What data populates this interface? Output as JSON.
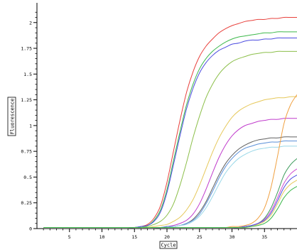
{
  "chart_data": {
    "type": "line",
    "title": "",
    "xlabel": "Cycle",
    "ylabel": "Fluorescence",
    "xlim": [
      0,
      40
    ],
    "ylim": [
      0,
      2.15
    ],
    "x_ticks": [
      5,
      10,
      15,
      20,
      25,
      30,
      35
    ],
    "x_tick_labels": [
      "5",
      "10",
      "15",
      "20",
      "25",
      "30",
      "35"
    ],
    "y_ticks": [
      0,
      0.25,
      0.5,
      0.75,
      1,
      1.25,
      1.5,
      1.75,
      2
    ],
    "y_tick_labels": [
      "0",
      "0.25",
      "0.5",
      "0.75",
      "1",
      "1.25",
      "1.5",
      "1.75",
      "2"
    ],
    "grid": false,
    "legend": "none",
    "x": [
      1,
      2,
      3,
      4,
      5,
      6,
      7,
      8,
      9,
      10,
      11,
      12,
      13,
      14,
      15,
      16,
      17,
      18,
      19,
      20,
      21,
      22,
      23,
      24,
      25,
      26,
      27,
      28,
      29,
      30,
      31,
      32,
      33,
      34,
      35,
      36,
      37,
      38,
      39,
      40
    ],
    "series": [
      {
        "color": "#e8413c",
        "values": [
          0.01,
          0.01,
          0.01,
          0.01,
          0.01,
          0.01,
          0.01,
          0.01,
          0.01,
          0.01,
          0.01,
          0.01,
          0.01,
          0.01,
          0.01,
          0.02,
          0.04,
          0.1,
          0.22,
          0.45,
          0.75,
          1.05,
          1.32,
          1.52,
          1.67,
          1.77,
          1.84,
          1.9,
          1.94,
          1.97,
          1.99,
          2.01,
          2.02,
          2.03,
          2.03,
          2.04,
          2.04,
          2.05,
          2.05,
          2.05
        ]
      },
      {
        "color": "#3cb84a",
        "values": [
          0.01,
          0.01,
          0.01,
          0.01,
          0.01,
          0.01,
          0.01,
          0.01,
          0.01,
          0.01,
          0.01,
          0.01,
          0.01,
          0.01,
          0.01,
          0.02,
          0.03,
          0.08,
          0.18,
          0.38,
          0.66,
          0.94,
          1.2,
          1.4,
          1.55,
          1.65,
          1.72,
          1.77,
          1.81,
          1.84,
          1.86,
          1.87,
          1.88,
          1.89,
          1.9,
          1.9,
          1.91,
          1.91,
          1.91,
          1.91
        ]
      },
      {
        "color": "#4c4ce0",
        "values": [
          0.01,
          0.01,
          0.01,
          0.01,
          0.01,
          0.01,
          0.01,
          0.01,
          0.01,
          0.01,
          0.01,
          0.01,
          0.01,
          0.01,
          0.01,
          0.02,
          0.03,
          0.07,
          0.16,
          0.35,
          0.62,
          0.9,
          1.16,
          1.36,
          1.51,
          1.61,
          1.68,
          1.73,
          1.76,
          1.79,
          1.8,
          1.82,
          1.83,
          1.83,
          1.84,
          1.84,
          1.85,
          1.85,
          1.85,
          1.85
        ]
      },
      {
        "color": "#8cbf4a",
        "values": [
          0.01,
          0.01,
          0.01,
          0.01,
          0.01,
          0.01,
          0.01,
          0.01,
          0.01,
          0.01,
          0.01,
          0.01,
          0.01,
          0.01,
          0.01,
          0.01,
          0.02,
          0.04,
          0.07,
          0.13,
          0.24,
          0.42,
          0.64,
          0.88,
          1.09,
          1.27,
          1.4,
          1.5,
          1.57,
          1.62,
          1.65,
          1.67,
          1.69,
          1.7,
          1.71,
          1.71,
          1.72,
          1.72,
          1.72,
          1.72
        ]
      },
      {
        "color": "#e6c85a",
        "values": [
          0.01,
          0.01,
          0.01,
          0.01,
          0.01,
          0.01,
          0.01,
          0.01,
          0.01,
          0.01,
          0.01,
          0.01,
          0.01,
          0.01,
          0.01,
          0.01,
          0.01,
          0.02,
          0.03,
          0.04,
          0.07,
          0.11,
          0.18,
          0.28,
          0.42,
          0.58,
          0.74,
          0.88,
          0.99,
          1.08,
          1.14,
          1.18,
          1.21,
          1.23,
          1.25,
          1.26,
          1.27,
          1.27,
          1.28,
          1.28
        ]
      },
      {
        "color": "#c03ccc",
        "values": [
          0.01,
          0.01,
          0.01,
          0.01,
          0.01,
          0.01,
          0.01,
          0.01,
          0.01,
          0.01,
          0.01,
          0.01,
          0.01,
          0.01,
          0.01,
          0.01,
          0.01,
          0.01,
          0.01,
          0.02,
          0.03,
          0.05,
          0.08,
          0.14,
          0.24,
          0.38,
          0.54,
          0.69,
          0.81,
          0.9,
          0.96,
          1.0,
          1.02,
          1.04,
          1.05,
          1.06,
          1.06,
          1.07,
          1.07,
          1.07
        ]
      },
      {
        "color": "#606060",
        "values": [
          0.01,
          0.01,
          0.01,
          0.01,
          0.01,
          0.01,
          0.01,
          0.01,
          0.01,
          0.01,
          0.01,
          0.01,
          0.01,
          0.01,
          0.01,
          0.01,
          0.01,
          0.01,
          0.01,
          0.02,
          0.02,
          0.03,
          0.05,
          0.09,
          0.16,
          0.26,
          0.39,
          0.52,
          0.63,
          0.71,
          0.77,
          0.81,
          0.84,
          0.86,
          0.87,
          0.88,
          0.88,
          0.89,
          0.89,
          0.89
        ]
      },
      {
        "color": "#5a8fd8",
        "values": [
          0.01,
          0.01,
          0.01,
          0.01,
          0.01,
          0.01,
          0.01,
          0.01,
          0.01,
          0.01,
          0.01,
          0.01,
          0.01,
          0.01,
          0.01,
          0.01,
          0.01,
          0.01,
          0.01,
          0.02,
          0.02,
          0.03,
          0.05,
          0.08,
          0.14,
          0.24,
          0.36,
          0.49,
          0.6,
          0.68,
          0.74,
          0.78,
          0.8,
          0.82,
          0.83,
          0.84,
          0.84,
          0.85,
          0.85,
          0.85
        ]
      },
      {
        "color": "#9ad8e8",
        "values": [
          0.01,
          0.01,
          0.01,
          0.01,
          0.01,
          0.01,
          0.01,
          0.01,
          0.01,
          0.01,
          0.01,
          0.01,
          0.01,
          0.01,
          0.01,
          0.01,
          0.01,
          0.01,
          0.01,
          0.01,
          0.02,
          0.03,
          0.04,
          0.07,
          0.12,
          0.2,
          0.31,
          0.43,
          0.54,
          0.62,
          0.68,
          0.72,
          0.75,
          0.77,
          0.78,
          0.79,
          0.79,
          0.8,
          0.8,
          0.8
        ]
      },
      {
        "color": "#f0a040",
        "values": [
          0.01,
          0.01,
          0.01,
          0.01,
          0.01,
          0.01,
          0.01,
          0.01,
          0.01,
          0.01,
          0.01,
          0.01,
          0.01,
          0.01,
          0.01,
          0.01,
          0.01,
          0.01,
          0.01,
          0.01,
          0.01,
          0.01,
          0.01,
          0.01,
          0.01,
          0.01,
          0.01,
          0.01,
          0.01,
          0.02,
          0.02,
          0.03,
          0.05,
          0.1,
          0.2,
          0.4,
          0.7,
          1.02,
          1.2,
          1.3
        ]
      },
      {
        "color": "#3c9a5a",
        "values": [
          0.01,
          0.01,
          0.01,
          0.01,
          0.01,
          0.01,
          0.01,
          0.01,
          0.01,
          0.01,
          0.01,
          0.01,
          0.01,
          0.01,
          0.01,
          0.01,
          0.01,
          0.01,
          0.01,
          0.01,
          0.01,
          0.01,
          0.01,
          0.01,
          0.01,
          0.01,
          0.01,
          0.01,
          0.01,
          0.01,
          0.01,
          0.02,
          0.03,
          0.05,
          0.1,
          0.2,
          0.35,
          0.52,
          0.62,
          0.68
        ]
      },
      {
        "color": "#d050d0",
        "values": [
          0.01,
          0.01,
          0.01,
          0.01,
          0.01,
          0.01,
          0.01,
          0.01,
          0.01,
          0.01,
          0.01,
          0.01,
          0.01,
          0.01,
          0.01,
          0.01,
          0.01,
          0.01,
          0.01,
          0.01,
          0.01,
          0.01,
          0.01,
          0.01,
          0.01,
          0.01,
          0.01,
          0.01,
          0.01,
          0.01,
          0.01,
          0.02,
          0.03,
          0.05,
          0.09,
          0.17,
          0.3,
          0.44,
          0.53,
          0.58
        ]
      },
      {
        "color": "#4c4ce0",
        "values": [
          0.01,
          0.01,
          0.01,
          0.01,
          0.01,
          0.01,
          0.01,
          0.01,
          0.01,
          0.01,
          0.01,
          0.01,
          0.01,
          0.01,
          0.01,
          0.01,
          0.01,
          0.01,
          0.01,
          0.01,
          0.01,
          0.01,
          0.01,
          0.01,
          0.01,
          0.01,
          0.01,
          0.01,
          0.01,
          0.01,
          0.01,
          0.02,
          0.03,
          0.05,
          0.08,
          0.15,
          0.27,
          0.4,
          0.48,
          0.52
        ]
      },
      {
        "color": "#e6c85a",
        "values": [
          0.01,
          0.01,
          0.01,
          0.01,
          0.01,
          0.01,
          0.01,
          0.01,
          0.01,
          0.01,
          0.01,
          0.01,
          0.01,
          0.01,
          0.01,
          0.01,
          0.01,
          0.01,
          0.01,
          0.01,
          0.01,
          0.01,
          0.01,
          0.01,
          0.01,
          0.01,
          0.01,
          0.01,
          0.01,
          0.01,
          0.01,
          0.01,
          0.02,
          0.04,
          0.07,
          0.13,
          0.24,
          0.36,
          0.43,
          0.47
        ]
      },
      {
        "color": "#3cb84a",
        "values": [
          0.01,
          0.01,
          0.01,
          0.01,
          0.01,
          0.01,
          0.01,
          0.01,
          0.01,
          0.01,
          0.01,
          0.01,
          0.01,
          0.01,
          0.01,
          0.01,
          0.01,
          0.01,
          0.01,
          0.01,
          0.01,
          0.01,
          0.01,
          0.01,
          0.01,
          0.01,
          0.01,
          0.01,
          0.01,
          0.01,
          0.01,
          0.01,
          0.02,
          0.03,
          0.05,
          0.1,
          0.19,
          0.3,
          0.37,
          0.41
        ]
      }
    ]
  }
}
